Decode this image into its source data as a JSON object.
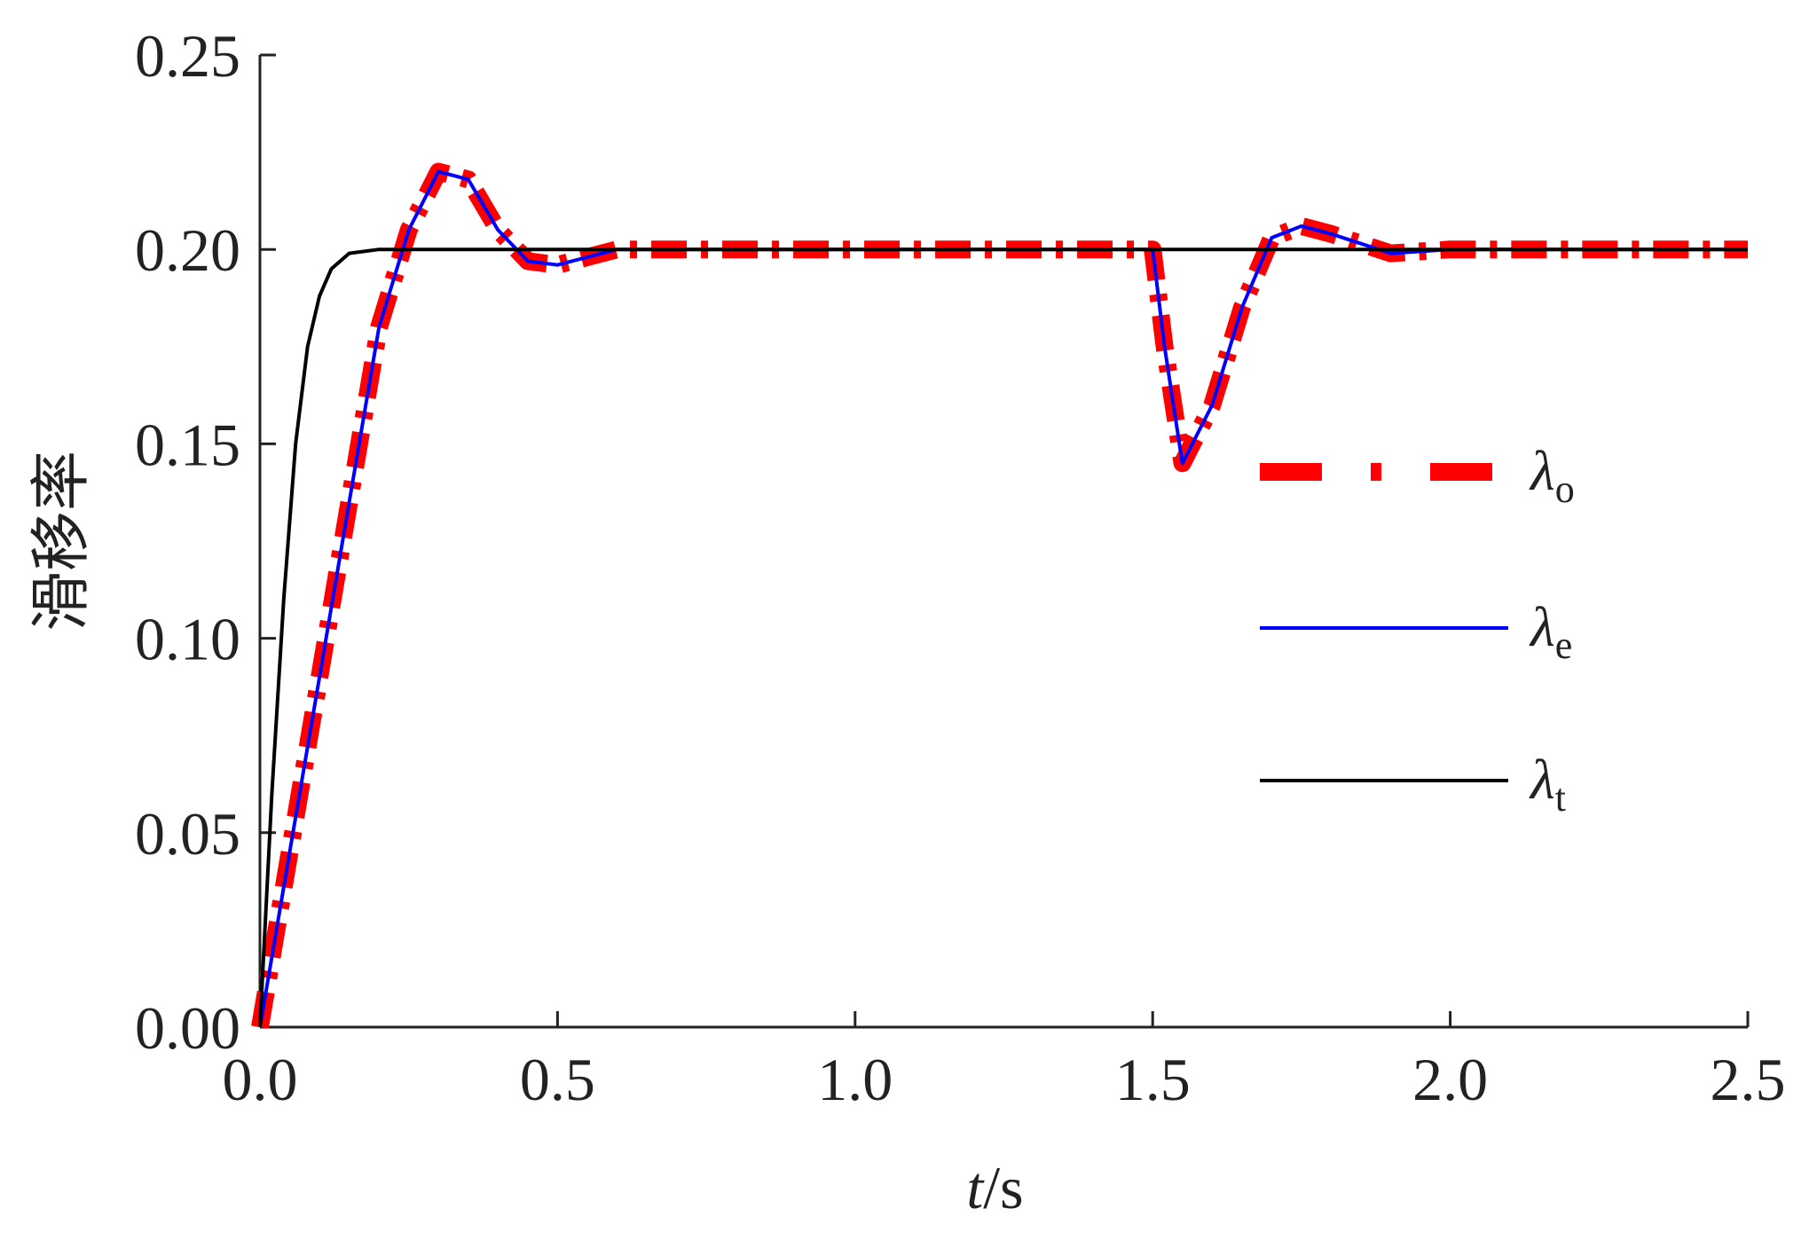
{
  "chart_data": {
    "type": "line",
    "title": "",
    "xlabel": {
      "italic": "t",
      "rest": "/s"
    },
    "ylabel": "滑移率",
    "xlim": [
      0,
      2.5
    ],
    "ylim": [
      0,
      0.25
    ],
    "xticks": [
      "0.0",
      "0.5",
      "1.0",
      "1.5",
      "2.0",
      "2.5"
    ],
    "yticks": [
      "0.00",
      "0.05",
      "0.10",
      "0.15",
      "0.20",
      "0.25"
    ],
    "grid": false,
    "legend_position": "right",
    "series": [
      {
        "name": "λo",
        "symbol": "λ",
        "subscript": "o",
        "color": "#ff0000",
        "style": "dash-dot-thick",
        "x": [
          0,
          0.05,
          0.1,
          0.15,
          0.2,
          0.25,
          0.3,
          0.35,
          0.4,
          0.45,
          0.5,
          0.6,
          0.8,
          1.0,
          1.2,
          1.4,
          1.5,
          1.52,
          1.55,
          1.6,
          1.65,
          1.7,
          1.75,
          1.8,
          1.9,
          2.0,
          2.2,
          2.5
        ],
        "y": [
          0,
          0.045,
          0.09,
          0.135,
          0.18,
          0.205,
          0.22,
          0.218,
          0.205,
          0.197,
          0.196,
          0.2,
          0.2,
          0.2,
          0.2,
          0.2,
          0.2,
          0.175,
          0.145,
          0.16,
          0.185,
          0.203,
          0.206,
          0.204,
          0.199,
          0.2,
          0.2,
          0.2
        ]
      },
      {
        "name": "λe",
        "symbol": "λ",
        "subscript": "e",
        "color": "#0000ff",
        "style": "solid",
        "x": [
          0,
          0.05,
          0.1,
          0.15,
          0.2,
          0.25,
          0.3,
          0.35,
          0.4,
          0.45,
          0.5,
          0.6,
          0.8,
          1.0,
          1.2,
          1.4,
          1.5,
          1.52,
          1.55,
          1.6,
          1.65,
          1.7,
          1.75,
          1.8,
          1.9,
          2.0,
          2.2,
          2.5
        ],
        "y": [
          0,
          0.045,
          0.09,
          0.135,
          0.18,
          0.205,
          0.22,
          0.218,
          0.205,
          0.197,
          0.196,
          0.2,
          0.2,
          0.2,
          0.2,
          0.2,
          0.2,
          0.175,
          0.145,
          0.16,
          0.185,
          0.203,
          0.206,
          0.204,
          0.199,
          0.2,
          0.2,
          0.2
        ]
      },
      {
        "name": "λt",
        "symbol": "λ",
        "subscript": "t",
        "color": "#000000",
        "style": "solid",
        "x": [
          0,
          0.02,
          0.04,
          0.06,
          0.08,
          0.1,
          0.12,
          0.15,
          0.2,
          2.5
        ],
        "y": [
          0,
          0.06,
          0.11,
          0.15,
          0.175,
          0.188,
          0.195,
          0.199,
          0.2,
          0.2
        ]
      }
    ]
  }
}
